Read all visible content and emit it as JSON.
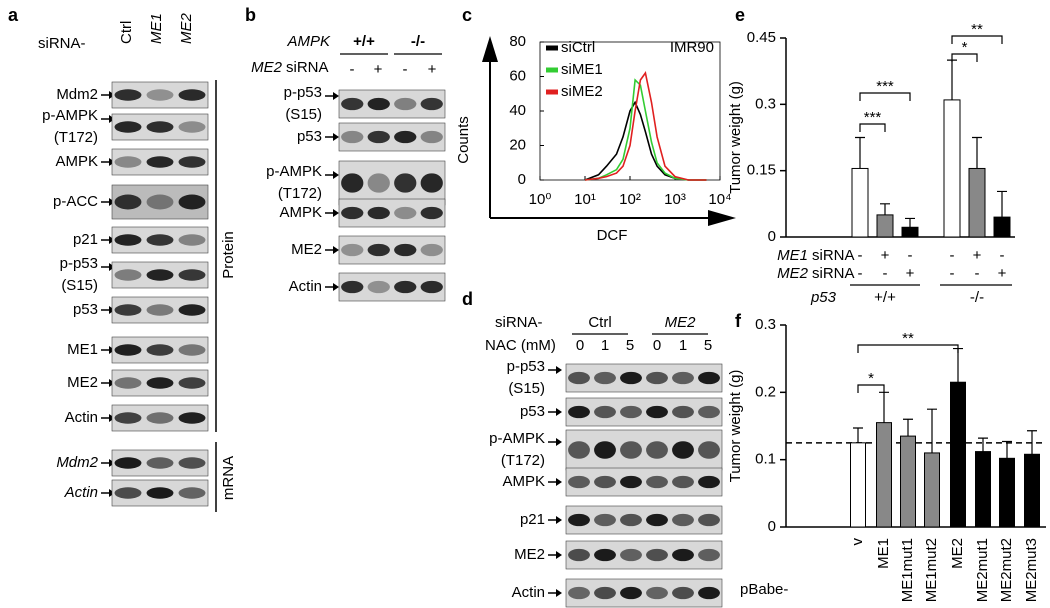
{
  "panels": {
    "a": {
      "label": "a",
      "treatment": "siRNA-",
      "lanes": [
        "Ctrl",
        "ME1",
        "ME2"
      ],
      "protein_rows": [
        [
          "Mdm2"
        ],
        [
          "p-AMPK",
          "(T172)"
        ],
        [
          "AMPK"
        ],
        [
          "p-ACC"
        ],
        [
          "p21"
        ],
        [
          "p-p53",
          "(S15)"
        ],
        [
          "p53"
        ],
        [
          "ME1"
        ],
        [
          "ME2"
        ],
        [
          "Actin"
        ]
      ],
      "protein_group": "Protein",
      "mrna_rows": [
        [
          "Mdm2"
        ],
        [
          "Actin"
        ]
      ],
      "mrna_group": "mRNA"
    },
    "b": {
      "label": "b",
      "genotype_name": "AMPK",
      "genotypes": [
        "+/+",
        "-/-"
      ],
      "treatment_gene": "ME2",
      "treatment_suffix": "siRNA",
      "lane_signs": [
        "-",
        "+",
        "-",
        "+"
      ],
      "rows": [
        [
          "p-p53",
          "(S15)"
        ],
        [
          "p53"
        ],
        [
          "p-AMPK",
          "(T172)"
        ],
        [
          "AMPK"
        ],
        [
          "ME2"
        ],
        [
          "Actin"
        ]
      ]
    },
    "c": {
      "label": "c"
    },
    "d": {
      "label": "d",
      "treatment": "siRNA-",
      "groups": [
        "Ctrl",
        "ME2"
      ],
      "dose_name": "NAC (mM)",
      "doses": [
        "0",
        "1",
        "5",
        "0",
        "1",
        "5"
      ],
      "rows": [
        [
          "p-p53",
          "(S15)"
        ],
        [
          "p53"
        ],
        [
          "p-AMPK",
          "(T172)"
        ],
        [
          "AMPK"
        ],
        [
          "p21"
        ],
        [
          "ME2"
        ],
        [
          "Actin"
        ]
      ]
    },
    "e": {
      "label": "e"
    },
    "f": {
      "label": "f"
    }
  },
  "chart_data": [
    {
      "type": "line",
      "xlabel": "DCF",
      "ylabel": "Counts",
      "annotation": "IMR90",
      "log_x": true,
      "x": [
        10,
        20,
        30,
        50,
        70,
        100,
        130,
        170,
        220,
        300,
        400,
        600,
        1000,
        2000,
        5000
      ],
      "series": [
        {
          "name": "siCtrl",
          "color": "#000000",
          "values": [
            0,
            3,
            8,
            15,
            25,
            40,
            45,
            38,
            28,
            15,
            8,
            3,
            1,
            0,
            0
          ]
        },
        {
          "name": "siME1",
          "color": "#33cc33",
          "values": [
            0,
            1,
            3,
            6,
            12,
            30,
            58,
            55,
            40,
            22,
            10,
            4,
            1,
            0,
            0
          ]
        },
        {
          "name": "siME2",
          "color": "#e02020",
          "values": [
            0,
            1,
            2,
            4,
            8,
            20,
            40,
            58,
            62,
            45,
            25,
            8,
            2,
            0,
            0
          ]
        }
      ],
      "xlim": [
        1,
        10000
      ],
      "xticks": [
        {
          "value": 1,
          "label": "10⁰"
        },
        {
          "value": 10,
          "label": "10¹"
        },
        {
          "value": 100,
          "label": "10²"
        },
        {
          "value": 1000,
          "label": "10³"
        },
        {
          "value": 10000,
          "label": "10⁴"
        }
      ],
      "ylim": [
        0,
        80
      ],
      "yticks": [
        0,
        20,
        40,
        60,
        80
      ]
    },
    {
      "type": "bar",
      "ylabel": "Tumor weight (g)",
      "values": [
        0.155,
        0.05,
        0.022,
        0.31,
        0.155,
        0.045
      ],
      "errors": [
        0.07,
        0.025,
        0.02,
        0.09,
        0.07,
        0.058
      ],
      "colors": [
        "#ffffff",
        "#888888",
        "#000000",
        "#ffffff",
        "#888888",
        "#000000"
      ],
      "ylim": [
        0,
        0.45
      ],
      "yticks": [
        0,
        0.15,
        0.3,
        0.45
      ],
      "annotations": [
        "***",
        "***",
        "*",
        "**"
      ],
      "conditions": [
        {
          "gene": "ME1",
          "suffix": "siRNA",
          "signs": [
            "-",
            "+",
            "-",
            "-",
            "+",
            "-"
          ]
        },
        {
          "gene": "ME2",
          "suffix": "siRNA",
          "signs": [
            "-",
            "-",
            "+",
            "-",
            "-",
            "+"
          ]
        }
      ],
      "group_label": "p53",
      "groups": [
        "+/+",
        "-/-"
      ]
    },
    {
      "type": "bar",
      "ylabel": "Tumor weight (g)",
      "x_prefix": "pBabe-",
      "categories": [
        "v",
        "ME1",
        "ME1mut1",
        "ME1mut2",
        "ME2",
        "ME2mut1",
        "ME2mut2",
        "ME2mut3"
      ],
      "values": [
        0.125,
        0.155,
        0.135,
        0.11,
        0.215,
        0.112,
        0.102,
        0.108
      ],
      "errors": [
        0.022,
        0.045,
        0.025,
        0.065,
        0.05,
        0.02,
        0.025,
        0.035
      ],
      "colors": [
        "#ffffff",
        "#888888",
        "#888888",
        "#888888",
        "#000000",
        "#000000",
        "#000000",
        "#000000"
      ],
      "hline": 0.125,
      "ylim": [
        0,
        0.3
      ],
      "yticks": [
        0,
        0.1,
        0.2,
        0.3
      ],
      "annotations": [
        "*",
        "**"
      ]
    }
  ]
}
